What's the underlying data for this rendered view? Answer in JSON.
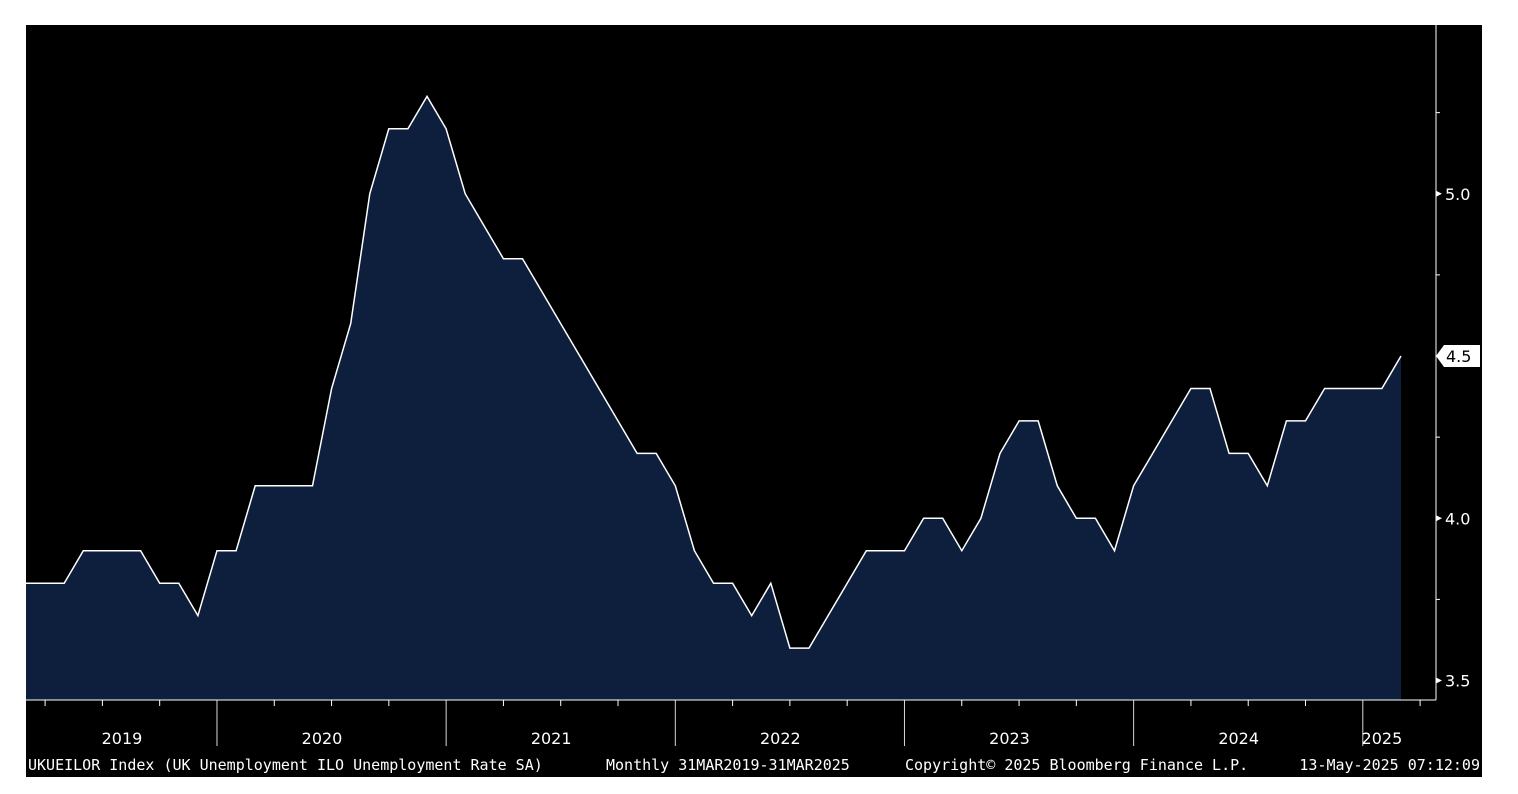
{
  "chart_data": {
    "type": "area",
    "ylim": [
      3.44,
      5.52
    ],
    "yticks": [
      {
        "value": 3.5,
        "label": "3.5"
      },
      {
        "value": 4.0,
        "label": "4.0"
      },
      {
        "value": 4.5,
        "label": "4.5"
      },
      {
        "value": 5.0,
        "label": "5.0"
      }
    ],
    "minor_yticks": [
      3.75,
      4.25,
      4.75,
      5.25
    ],
    "x_start": "2019-03",
    "x_end": "2025-03",
    "years": [
      {
        "label": "2019",
        "start": "2019-01",
        "end": "2019-12"
      },
      {
        "label": "2020",
        "start": "2020-01",
        "end": "2020-12"
      },
      {
        "label": "2021",
        "start": "2021-01",
        "end": "2021-12"
      },
      {
        "label": "2022",
        "start": "2022-01",
        "end": "2022-12"
      },
      {
        "label": "2023",
        "start": "2023-01",
        "end": "2023-12"
      },
      {
        "label": "2024",
        "start": "2024-01",
        "end": "2024-12"
      },
      {
        "label": "2025",
        "start": "2025-01",
        "end": "2025-03"
      }
    ],
    "last_value_label": "4.5",
    "colors": {
      "fill": "#0e1f3d",
      "line": "#ffffff",
      "background": "#000000",
      "badge": "#ffffff"
    },
    "x": [
      "2019-03",
      "2019-04",
      "2019-05",
      "2019-06",
      "2019-07",
      "2019-08",
      "2019-09",
      "2019-10",
      "2019-11",
      "2019-12",
      "2020-01",
      "2020-02",
      "2020-03",
      "2020-04",
      "2020-05",
      "2020-06",
      "2020-07",
      "2020-08",
      "2020-09",
      "2020-10",
      "2020-11",
      "2020-12",
      "2021-01",
      "2021-02",
      "2021-03",
      "2021-04",
      "2021-05",
      "2021-06",
      "2021-07",
      "2021-08",
      "2021-09",
      "2021-10",
      "2021-11",
      "2021-12",
      "2022-01",
      "2022-02",
      "2022-03",
      "2022-04",
      "2022-05",
      "2022-06",
      "2022-07",
      "2022-08",
      "2022-09",
      "2022-10",
      "2022-11",
      "2022-12",
      "2023-01",
      "2023-02",
      "2023-03",
      "2023-04",
      "2023-05",
      "2023-06",
      "2023-07",
      "2023-08",
      "2023-09",
      "2023-10",
      "2023-11",
      "2023-12",
      "2024-01",
      "2024-02",
      "2024-03",
      "2024-04",
      "2024-05",
      "2024-06",
      "2024-07",
      "2024-08",
      "2024-09",
      "2024-10",
      "2024-11",
      "2024-12",
      "2025-01",
      "2025-02",
      "2025-03"
    ],
    "series": [
      {
        "values": [
          3.8,
          3.8,
          3.8,
          3.9,
          3.9,
          3.9,
          3.9,
          3.8,
          3.8,
          3.7,
          3.9,
          3.9,
          4.1,
          4.1,
          4.1,
          4.1,
          4.4,
          4.6,
          5.0,
          5.2,
          5.2,
          5.3,
          5.2,
          5.0,
          4.9,
          4.8,
          4.8,
          4.7,
          4.6,
          4.5,
          4.4,
          4.3,
          4.2,
          4.2,
          4.1,
          3.9,
          3.8,
          3.8,
          3.7,
          3.8,
          3.6,
          3.6,
          3.7,
          3.8,
          3.9,
          3.9,
          3.9,
          4.0,
          4.0,
          3.9,
          4.0,
          4.2,
          4.3,
          4.3,
          4.1,
          4.0,
          4.0,
          3.9,
          4.1,
          4.2,
          4.3,
          4.4,
          4.4,
          4.2,
          4.2,
          4.1,
          4.3,
          4.3,
          4.4,
          4.4,
          4.4,
          4.4,
          4.5
        ]
      }
    ]
  },
  "footer": {
    "ticker": "UKUEILOR Index (UK Unemployment ILO Unemployment Rate SA)",
    "range": "Monthly 31MAR2019-31MAR2025",
    "copyright": "Copyright© 2025 Bloomberg Finance L.P.",
    "timestamp": "13-May-2025 07:12:09"
  }
}
